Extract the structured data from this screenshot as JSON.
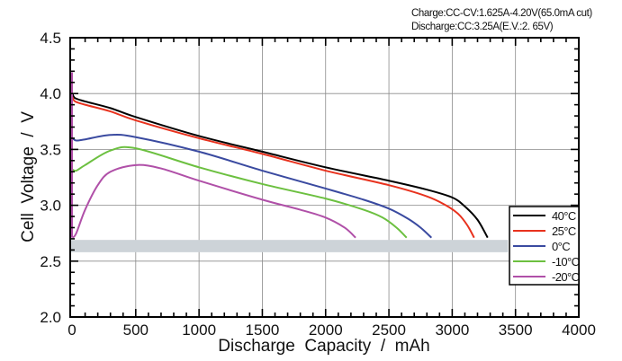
{
  "conditions": {
    "charge": "Charge:CC-CV:1.625A-4.20V(65.0mA cut)",
    "discharge": "Discharge:CC:3.25A(E.V.:2. 65V)"
  },
  "chart_data": {
    "type": "line",
    "title": "",
    "xlabel": "Discharge  Capacity  /  mAh",
    "ylabel": "Cell  Voltage  /  V",
    "xlim": [
      0,
      4000
    ],
    "ylim": [
      2.0,
      4.5
    ],
    "xticks": [
      0,
      500,
      1000,
      1500,
      2000,
      2500,
      3000,
      3500,
      4000
    ],
    "xtick_labels": [
      "0",
      "500",
      "1000",
      "1500",
      "2000",
      "2500",
      "3000",
      "3500",
      "4000"
    ],
    "yticks": [
      2.0,
      2.5,
      3.0,
      3.5,
      4.0,
      4.5
    ],
    "ytick_labels": [
      "2.0",
      "2.5",
      "3.0",
      "3.5",
      "4.0",
      "4.5"
    ],
    "x_minor_step": 100,
    "y_minor_step": 0.1,
    "grid": true,
    "legend_position": "right",
    "series": [
      {
        "name": "40°C",
        "color": "#000000",
        "x": [
          0,
          20,
          100,
          300,
          500,
          1000,
          1500,
          2000,
          2500,
          2800,
          3000,
          3100,
          3200,
          3280
        ],
        "y": [
          4.0,
          3.96,
          3.93,
          3.87,
          3.79,
          3.62,
          3.48,
          3.34,
          3.22,
          3.14,
          3.07,
          2.99,
          2.87,
          2.71
        ]
      },
      {
        "name": "25°C",
        "color": "#e8321e",
        "x": [
          0,
          20,
          100,
          300,
          500,
          1000,
          1500,
          2000,
          2500,
          2800,
          2950,
          3050,
          3120,
          3173
        ],
        "y": [
          3.97,
          3.93,
          3.9,
          3.84,
          3.76,
          3.6,
          3.46,
          3.31,
          3.18,
          3.08,
          3.0,
          2.92,
          2.82,
          2.71
        ]
      },
      {
        "name": "0°C",
        "color": "#3a4aa0",
        "x": [
          0,
          30,
          100,
          300,
          500,
          1000,
          1500,
          2000,
          2300,
          2500,
          2650,
          2750,
          2836
        ],
        "y": [
          3.6,
          3.58,
          3.59,
          3.63,
          3.61,
          3.48,
          3.31,
          3.15,
          3.05,
          2.97,
          2.88,
          2.8,
          2.71
        ]
      },
      {
        "name": "-10°C",
        "color": "#6cc040",
        "x": [
          0,
          30,
          100,
          300,
          500,
          1000,
          1500,
          2000,
          2300,
          2450,
          2560,
          2640
        ],
        "y": [
          3.32,
          3.31,
          3.36,
          3.49,
          3.51,
          3.34,
          3.19,
          3.06,
          2.96,
          2.89,
          2.8,
          2.71
        ]
      },
      {
        "name": "-20°C",
        "color": "#b050a8",
        "x": [
          0,
          30,
          100,
          200,
          300,
          500,
          700,
          1000,
          1500,
          1800,
          2000,
          2150,
          2237
        ],
        "y": [
          2.71,
          2.75,
          2.96,
          3.18,
          3.3,
          3.36,
          3.33,
          3.22,
          3.05,
          2.96,
          2.89,
          2.8,
          2.71
        ]
      }
    ],
    "spike_at_zero": {
      "name": "charge-end transient",
      "color": "#b050a8",
      "x": 0,
      "y_from": 2.71,
      "y_to": 4.19
    },
    "occlusion_band": {
      "color": "#cdd3d8",
      "y_from": 2.69,
      "y_to": 2.58,
      "x_from": 0,
      "x_to": 3440
    }
  }
}
